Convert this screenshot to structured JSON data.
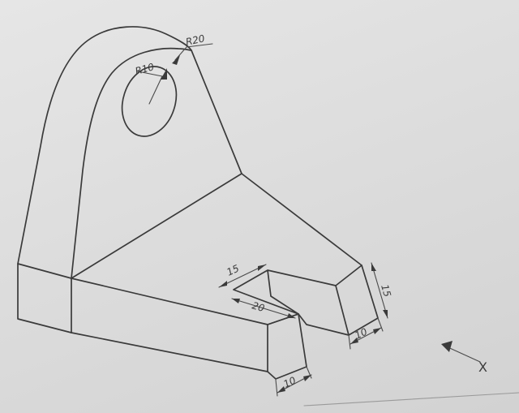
{
  "dimensions": {
    "radius_outer": "R20",
    "radius_inner": "R10",
    "slot_depth": "15",
    "slot_width": "20",
    "base_front_width": "10",
    "tab_width": "10",
    "tab_height": "15"
  },
  "direction_marker": "X",
  "colors": {
    "paper": "#dcdcdc",
    "pencil": "#3a3a3a"
  }
}
